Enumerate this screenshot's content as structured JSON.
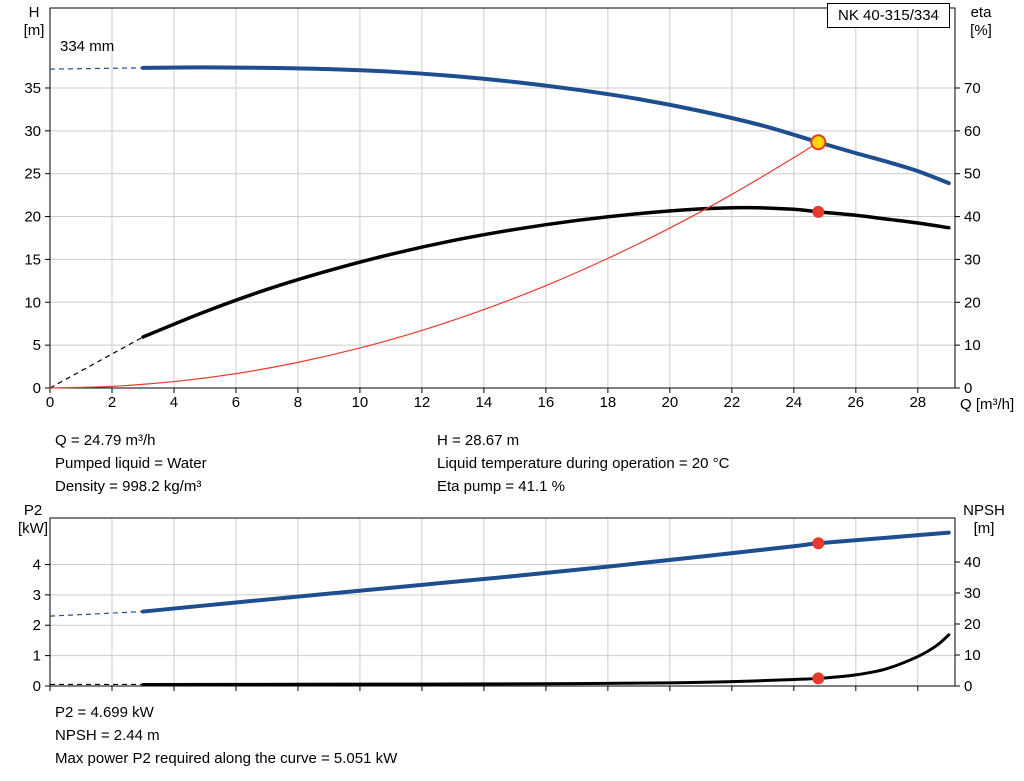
{
  "axes": {
    "h": "H",
    "h_unit": "[m]",
    "eta": "eta",
    "eta_unit": "[%]",
    "q_label": "Q [m³/h]",
    "p2": "P2",
    "p2_unit": "[kW]",
    "npsh": "NPSH",
    "npsh_unit": "[m]"
  },
  "details_top": {
    "q": "Q = 24.79 m³/h",
    "liquid": "Pumped liquid = Water",
    "density": "Density = 998.2 kg/m³",
    "h": "H = 28.67 m",
    "temp": "Liquid temperature during operation = 20 °C",
    "eta": "Eta pump = 41.1 %"
  },
  "details_bottom": {
    "p2": "P2 = 4.699 kW",
    "npsh": "NPSH = 2.44 m",
    "max_p2": "Max power P2 required along the curve = 5.051 kW"
  },
  "colors": {
    "curve_blue": "#1f4e8e",
    "curve_black": "#000000",
    "system_red": "#e8392f",
    "duty_yellow": "#ffd800",
    "grid": "#cccccc"
  },
  "chart_data": [
    {
      "type": "line",
      "name": "hq-eta-chart",
      "title": "NK 40-315/334",
      "xlabel": "Q [m³/h]",
      "ylabel_left": "H [m]",
      "ylabel_right": "eta [%]",
      "xlim": [
        0,
        29.2
      ],
      "xticks": [
        0,
        2,
        4,
        6,
        8,
        10,
        12,
        14,
        16,
        18,
        20,
        22,
        24,
        26,
        28
      ],
      "show_x_labels": true,
      "ylim_left": [
        0,
        44.33
      ],
      "yticks_left": [
        0,
        5,
        10,
        15,
        20,
        25,
        30,
        35
      ],
      "ylim_right": [
        0,
        88.67
      ],
      "yticks_right": [
        0,
        10,
        20,
        30,
        40,
        50,
        60,
        70
      ],
      "grid": true,
      "legend_position": "none",
      "series": [
        {
          "name": "head-curve",
          "label": "334 mm",
          "axis": "left",
          "color": "#1f4e8e",
          "width": 4,
          "dash_lead": [
            [
              0,
              37.2
            ],
            [
              3,
              37.35
            ]
          ],
          "points": [
            [
              3,
              37.35
            ],
            [
              5,
              37.4
            ],
            [
              7,
              37.35
            ],
            [
              9,
              37.2
            ],
            [
              11,
              36.9
            ],
            [
              13,
              36.4
            ],
            [
              15,
              35.7
            ],
            [
              17,
              34.8
            ],
            [
              19,
              33.7
            ],
            [
              21,
              32.3
            ],
            [
              23,
              30.6
            ],
            [
              24.79,
              28.67
            ],
            [
              26,
              27.4
            ],
            [
              27,
              26.4
            ],
            [
              28,
              25.3
            ],
            [
              29,
              23.9
            ]
          ]
        },
        {
          "name": "efficiency-curve",
          "label": "eta pump",
          "axis": "right",
          "color": "#000000",
          "width": 3.5,
          "dash_lead": [
            [
              0,
              0
            ],
            [
              3,
              11.9
            ]
          ],
          "points": [
            [
              3,
              11.9
            ],
            [
              5,
              17.8
            ],
            [
              7,
              23.0
            ],
            [
              9,
              27.4
            ],
            [
              11,
              31.2
            ],
            [
              13,
              34.4
            ],
            [
              15,
              37.0
            ],
            [
              17,
              39.1
            ],
            [
              19,
              40.7
            ],
            [
              21,
              41.8
            ],
            [
              22.5,
              42.1
            ],
            [
              24,
              41.7
            ],
            [
              24.79,
              41.1
            ],
            [
              26,
              40.3
            ],
            [
              27,
              39.4
            ],
            [
              28,
              38.5
            ],
            [
              29,
              37.4
            ]
          ]
        },
        {
          "name": "system-curve",
          "label": "system curve",
          "axis": "left",
          "color": "#e8392f",
          "width": 1.2,
          "points": [
            [
              0,
              0
            ],
            [
              2,
              0.19
            ],
            [
              4,
              0.75
            ],
            [
              6,
              1.68
            ],
            [
              8,
              2.99
            ],
            [
              10,
              4.67
            ],
            [
              12,
              6.72
            ],
            [
              14,
              9.15
            ],
            [
              16,
              11.94
            ],
            [
              18,
              15.12
            ],
            [
              20,
              18.66
            ],
            [
              22,
              22.58
            ],
            [
              24,
              26.87
            ],
            [
              24.79,
              28.67
            ]
          ]
        }
      ],
      "markers": [
        {
          "name": "duty-point-head",
          "axis": "left",
          "x": 24.79,
          "y": 28.67,
          "r": 7,
          "fill": "#ffd800",
          "stroke": "#e8392f",
          "stroke_width": 2
        },
        {
          "name": "duty-point-eta",
          "axis": "right",
          "x": 24.79,
          "y": 41.1,
          "r": 5.5,
          "fill": "#e8392f",
          "stroke": "#e8392f",
          "stroke_width": 1
        }
      ]
    },
    {
      "type": "line",
      "name": "p2-npsh-chart",
      "title": "",
      "xlabel": "",
      "ylabel_left": "P2 [kW]",
      "ylabel_right": "NPSH [m]",
      "xlim": [
        0,
        29.2
      ],
      "xticks": [
        0,
        2,
        4,
        6,
        8,
        10,
        12,
        14,
        16,
        18,
        20,
        22,
        24,
        26,
        28
      ],
      "show_x_labels": false,
      "ylim_left": [
        0,
        5.53
      ],
      "yticks_left": [
        0,
        1,
        2,
        3,
        4
      ],
      "ylim_right": [
        0,
        54.2
      ],
      "yticks_right": [
        0,
        10,
        20,
        30,
        40
      ],
      "grid": true,
      "legend_position": "none",
      "series": [
        {
          "name": "p2-curve",
          "label": "P2",
          "axis": "left",
          "color": "#1f4e8e",
          "width": 4,
          "dash_lead": [
            [
              0,
              2.3
            ],
            [
              3,
              2.45
            ]
          ],
          "points": [
            [
              3,
              2.45
            ],
            [
              6,
              2.75
            ],
            [
              9,
              3.04
            ],
            [
              12,
              3.33
            ],
            [
              15,
              3.62
            ],
            [
              18,
              3.93
            ],
            [
              21,
              4.26
            ],
            [
              24,
              4.6
            ],
            [
              24.79,
              4.699
            ],
            [
              27,
              4.88
            ],
            [
              29,
              5.05
            ]
          ]
        },
        {
          "name": "npsh-curve",
          "label": "NPSH",
          "axis": "right",
          "color": "#000000",
          "width": 3,
          "dash_lead": [
            [
              0,
              0.5
            ],
            [
              3,
              0.5
            ]
          ],
          "points": [
            [
              3,
              0.5
            ],
            [
              8,
              0.55
            ],
            [
              12,
              0.62
            ],
            [
              16,
              0.72
            ],
            [
              20,
              1.0
            ],
            [
              22,
              1.4
            ],
            [
              24,
              2.1
            ],
            [
              24.79,
              2.44
            ],
            [
              26,
              3.6
            ],
            [
              27,
              5.6
            ],
            [
              28,
              9.5
            ],
            [
              28.6,
              13.0
            ],
            [
              29,
              16.5
            ]
          ]
        }
      ],
      "markers": [
        {
          "name": "duty-point-p2",
          "axis": "left",
          "x": 24.79,
          "y": 4.699,
          "r": 5.5,
          "fill": "#e8392f",
          "stroke": "#e8392f",
          "stroke_width": 1
        },
        {
          "name": "duty-point-npsh",
          "axis": "right",
          "x": 24.79,
          "y": 2.44,
          "r": 5.5,
          "fill": "#e8392f",
          "stroke": "#e8392f",
          "stroke_width": 1
        }
      ]
    }
  ]
}
